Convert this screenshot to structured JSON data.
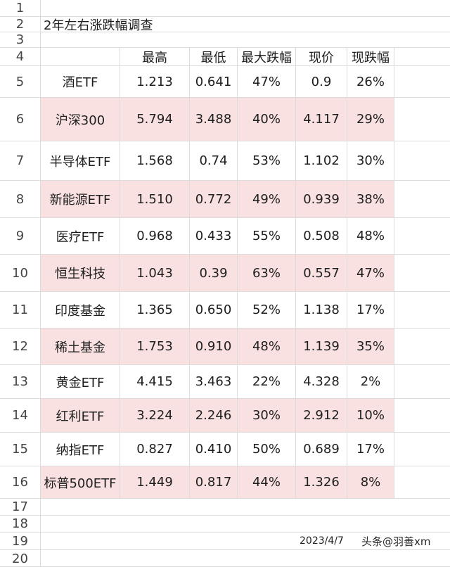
{
  "title": "2年左右涨跌幅调查",
  "headers": [
    "",
    "最高",
    "最低",
    "最大跌幅",
    "现价",
    "现跌幅"
  ],
  "rows": [
    {
      "num": "5",
      "name": "酒ETF",
      "high": "1.213",
      "low": "0.641",
      "max_drop": "47%",
      "price": "0.9",
      "cur_drop": "26%"
    },
    {
      "num": "6",
      "name": "沪深300",
      "high": "5.794",
      "low": "3.488",
      "max_drop": "40%",
      "price": "4.117",
      "cur_drop": "29%"
    },
    {
      "num": "7",
      "name": "半导体ETF",
      "high": "1.568",
      "low": "0.74",
      "max_drop": "53%",
      "price": "1.102",
      "cur_drop": "30%"
    },
    {
      "num": "8",
      "name": "新能源ETF",
      "high": "1.510",
      "low": "0.772",
      "max_drop": "49%",
      "price": "0.939",
      "cur_drop": "38%"
    },
    {
      "num": "9",
      "name": "医疗ETF",
      "high": "0.968",
      "low": "0.433",
      "max_drop": "55%",
      "price": "0.508",
      "cur_drop": "48%"
    },
    {
      "num": "10",
      "name": "恒生科技",
      "high": "1.043",
      "low": "0.39",
      "max_drop": "63%",
      "price": "0.557",
      "cur_drop": "47%"
    },
    {
      "num": "11",
      "name": "印度基金",
      "high": "1.365",
      "low": "0.650",
      "max_drop": "52%",
      "price": "1.138",
      "cur_drop": "17%"
    },
    {
      "num": "12",
      "name": "稀土基金",
      "high": "1.753",
      "low": "0.910",
      "max_drop": "48%",
      "price": "1.139",
      "cur_drop": "35%"
    },
    {
      "num": "13",
      "name": "黄金ETF",
      "high": "4.415",
      "low": "3.463",
      "max_drop": "22%",
      "price": "4.328",
      "cur_drop": "2%"
    },
    {
      "num": "14",
      "name": "红利ETF",
      "high": "3.224",
      "low": "2.246",
      "max_drop": "30%",
      "price": "2.912",
      "cur_drop": "10%"
    },
    {
      "num": "15",
      "name": "纳指ETF",
      "high": "0.827",
      "low": "0.410",
      "max_drop": "50%",
      "price": "0.689",
      "cur_drop": "17%"
    },
    {
      "num": "16",
      "name": "标普500ETF",
      "high": "1.449",
      "low": "0.817",
      "max_drop": "44%",
      "price": "1.326",
      "cur_drop": "8%"
    }
  ],
  "row_numbers_top": [
    "1",
    "2",
    "3",
    "4"
  ],
  "row_numbers_bottom": [
    "17",
    "18",
    "19",
    "20"
  ],
  "date": "2023/4/7",
  "watermark": "头条@羽善xm",
  "colors": {
    "highlight": "#f9e1e1",
    "grid": "#dcdcdc"
  }
}
